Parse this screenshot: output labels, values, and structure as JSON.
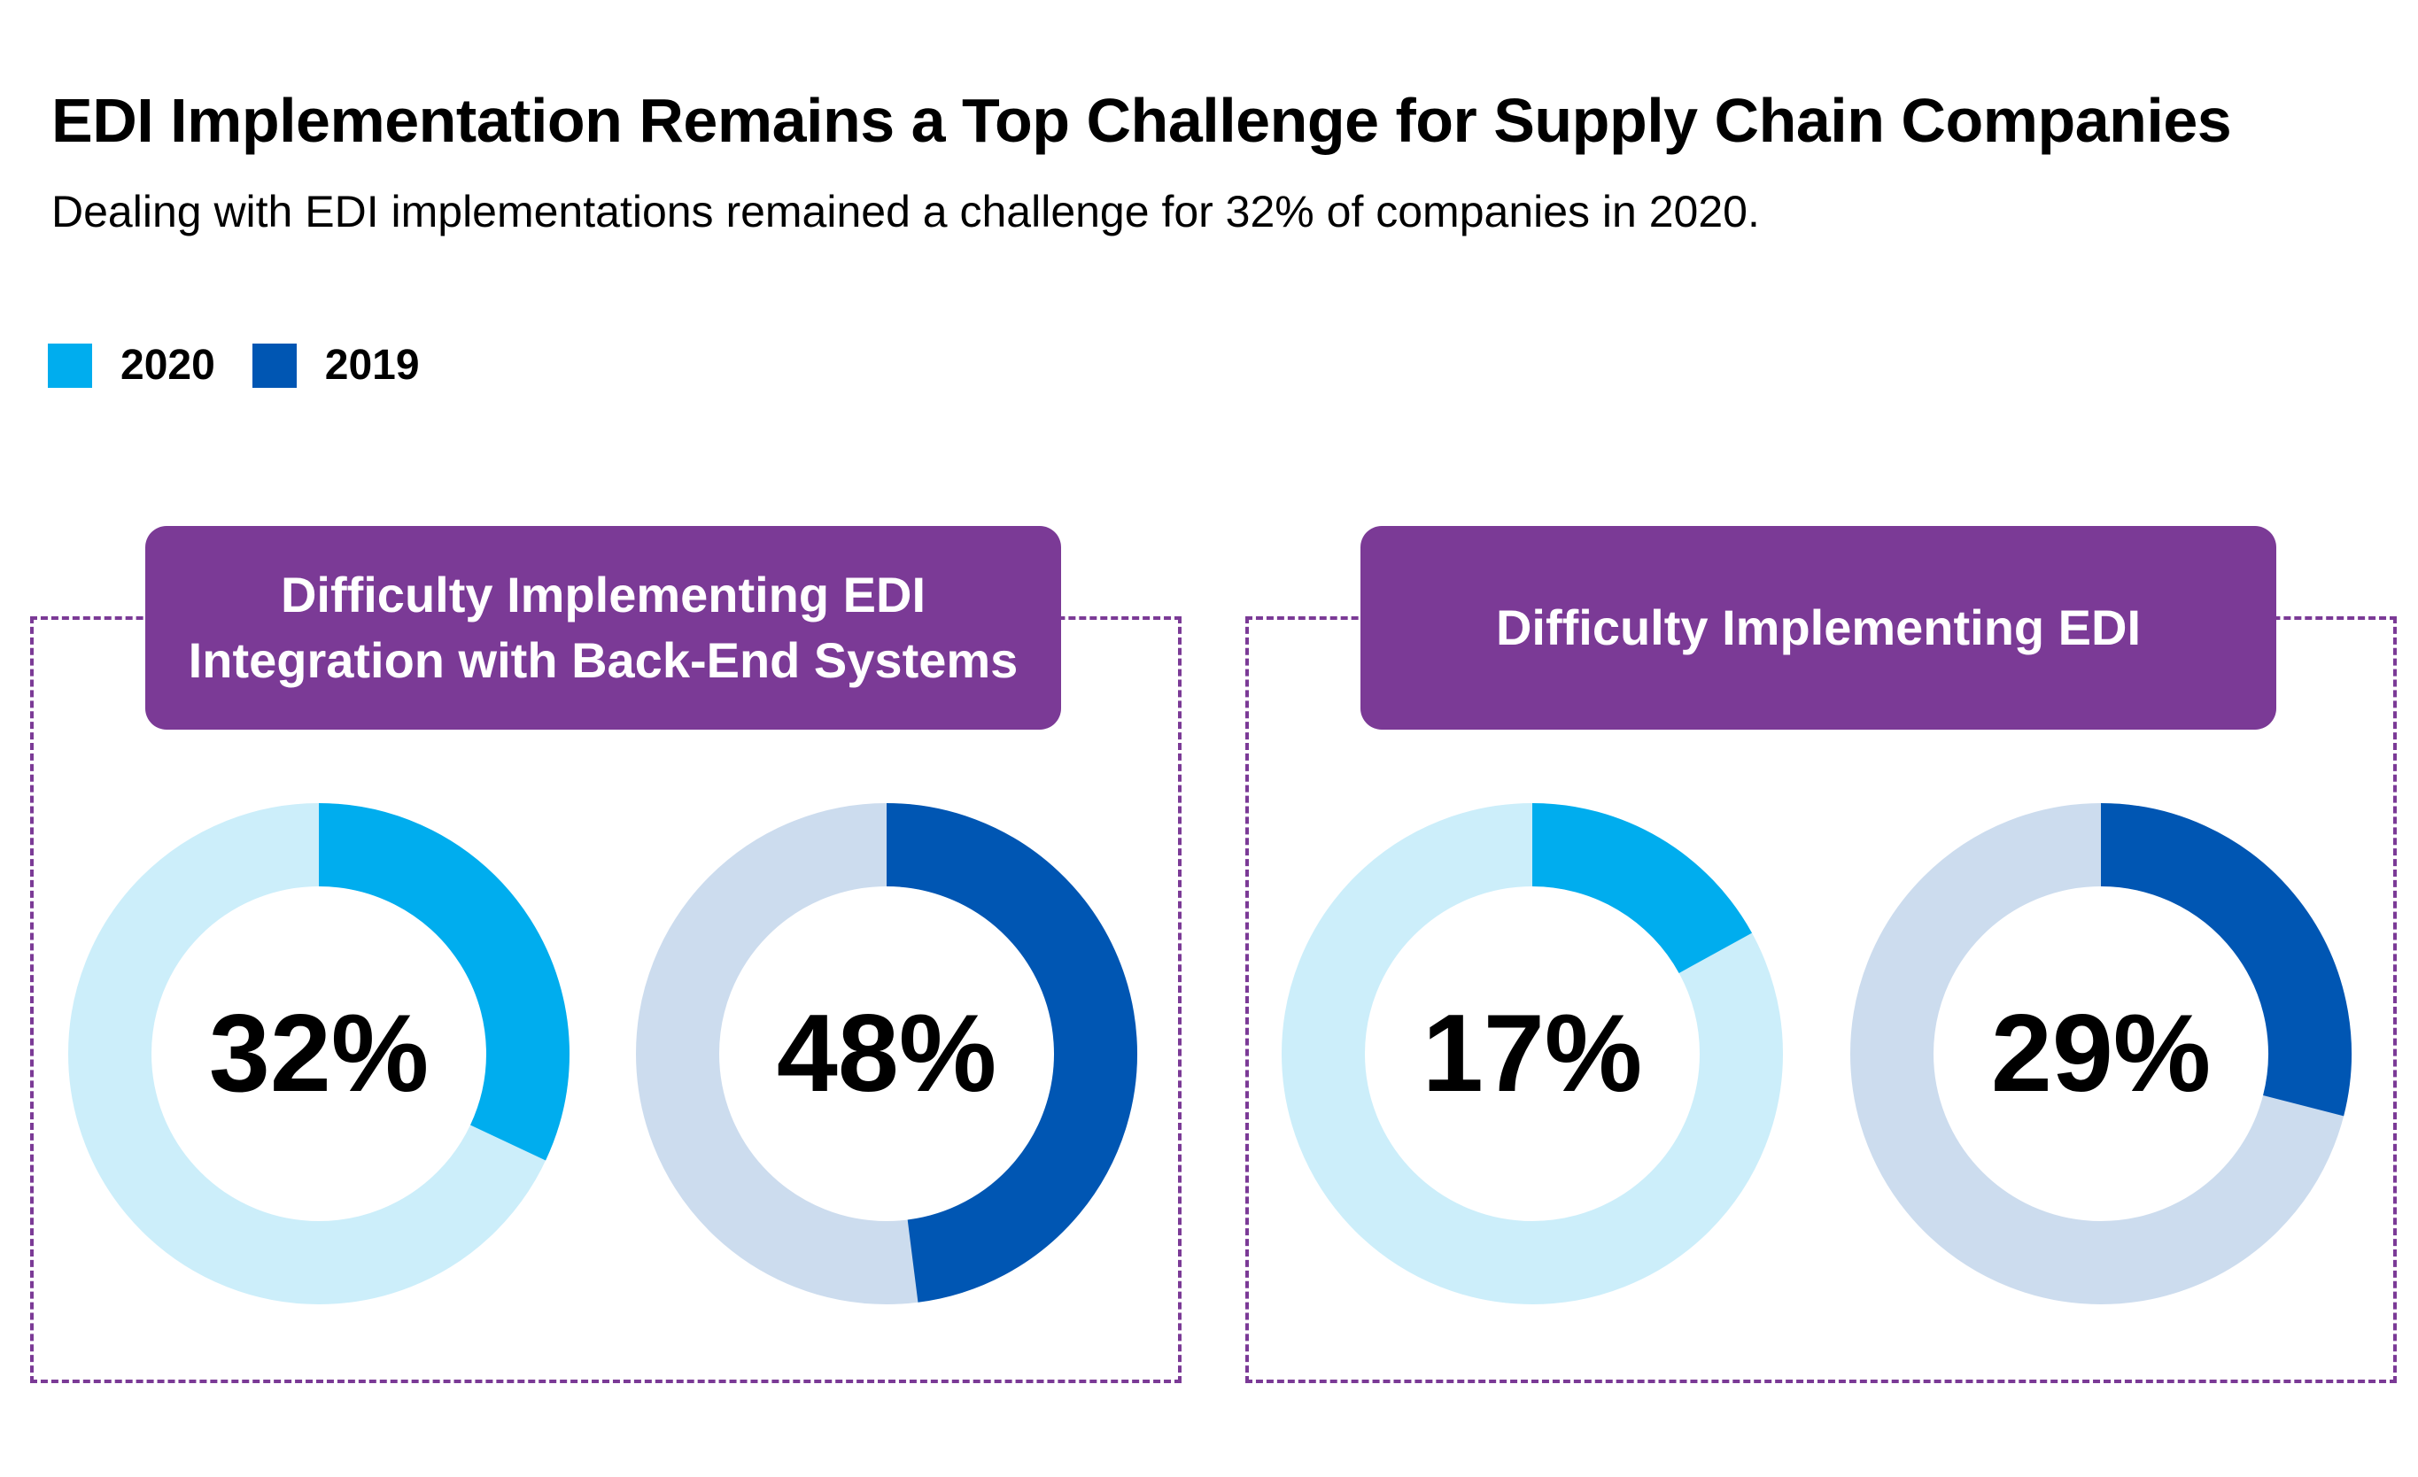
{
  "title": "EDI Implementation Remains a Top Challenge for Supply Chain Companies",
  "subtitle": "Dealing with EDI implementations remained a challenge for 32% of companies in 2020.",
  "legend": [
    {
      "label": "2020",
      "color": "#00adee"
    },
    {
      "label": "2019",
      "color": "#0056b3"
    }
  ],
  "colors": {
    "accent_2020": "#00adee",
    "track_2020": "#cceefa",
    "accent_2019": "#0056b3",
    "track_2019": "#ccdcee",
    "panel": "#7b3a96"
  },
  "panels": [
    {
      "header_lines": [
        "Difficulty Implementing EDI",
        "Integration with Back-End Systems"
      ]
    },
    {
      "header_lines": [
        "Difficulty Implementing EDI"
      ]
    }
  ],
  "chart_data": [
    {
      "type": "pie",
      "title": "Difficulty Implementing EDI Integration with Back-End Systems",
      "series": [
        {
          "name": "2020",
          "value": 32,
          "label": "32%"
        },
        {
          "name": "2019",
          "value": 48,
          "label": "48%"
        }
      ]
    },
    {
      "type": "pie",
      "title": "Difficulty Implementing EDI",
      "series": [
        {
          "name": "2020",
          "value": 17,
          "label": "17%"
        },
        {
          "name": "2019",
          "value": 29,
          "label": "29%"
        }
      ]
    }
  ]
}
